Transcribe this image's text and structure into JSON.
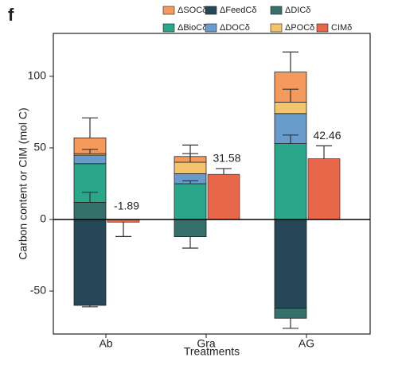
{
  "chart_data": {
    "type": "stacked_bar",
    "panel_label": "f",
    "y_label": "Carbon content or CIM (mol C)",
    "x_label": "Treatments",
    "categories": [
      "Ab",
      "Gra",
      "AG"
    ],
    "ylim": [
      -80,
      130
    ],
    "yticks": [
      -50,
      0,
      50,
      100
    ],
    "series": [
      {
        "name": "ΔSOCδ",
        "color": "#f39a5c",
        "values": [
          11,
          4,
          21
        ],
        "errors": [
          14,
          8,
          14
        ]
      },
      {
        "name": "ΔFeedCδ",
        "color": "#254757",
        "values": [
          -60,
          0,
          -62
        ],
        "errors": [
          1,
          null,
          null
        ]
      },
      {
        "name": "ΔDICδ",
        "color": "#36706a",
        "values": [
          12,
          -12,
          -7
        ],
        "errors": [
          7,
          8,
          7
        ]
      },
      {
        "name": "ΔBioCδ",
        "color": "#2aa68b",
        "values": [
          27,
          25,
          53
        ],
        "errors": [
          null,
          2,
          6
        ]
      },
      {
        "name": "ΔDOCδ",
        "color": "#6a9ccb",
        "values": [
          6,
          7,
          21
        ],
        "errors": [
          null,
          null,
          null
        ]
      },
      {
        "name": "ΔPOCδ",
        "color": "#f3c46c",
        "values": [
          1,
          8,
          8
        ],
        "errors": [
          3,
          6,
          9
        ]
      },
      {
        "name": "CIMδ",
        "color": "#e8674b",
        "values": [
          -1.89,
          31.58,
          42.46
        ],
        "errors": [
          10,
          4,
          9
        ]
      }
    ]
  }
}
